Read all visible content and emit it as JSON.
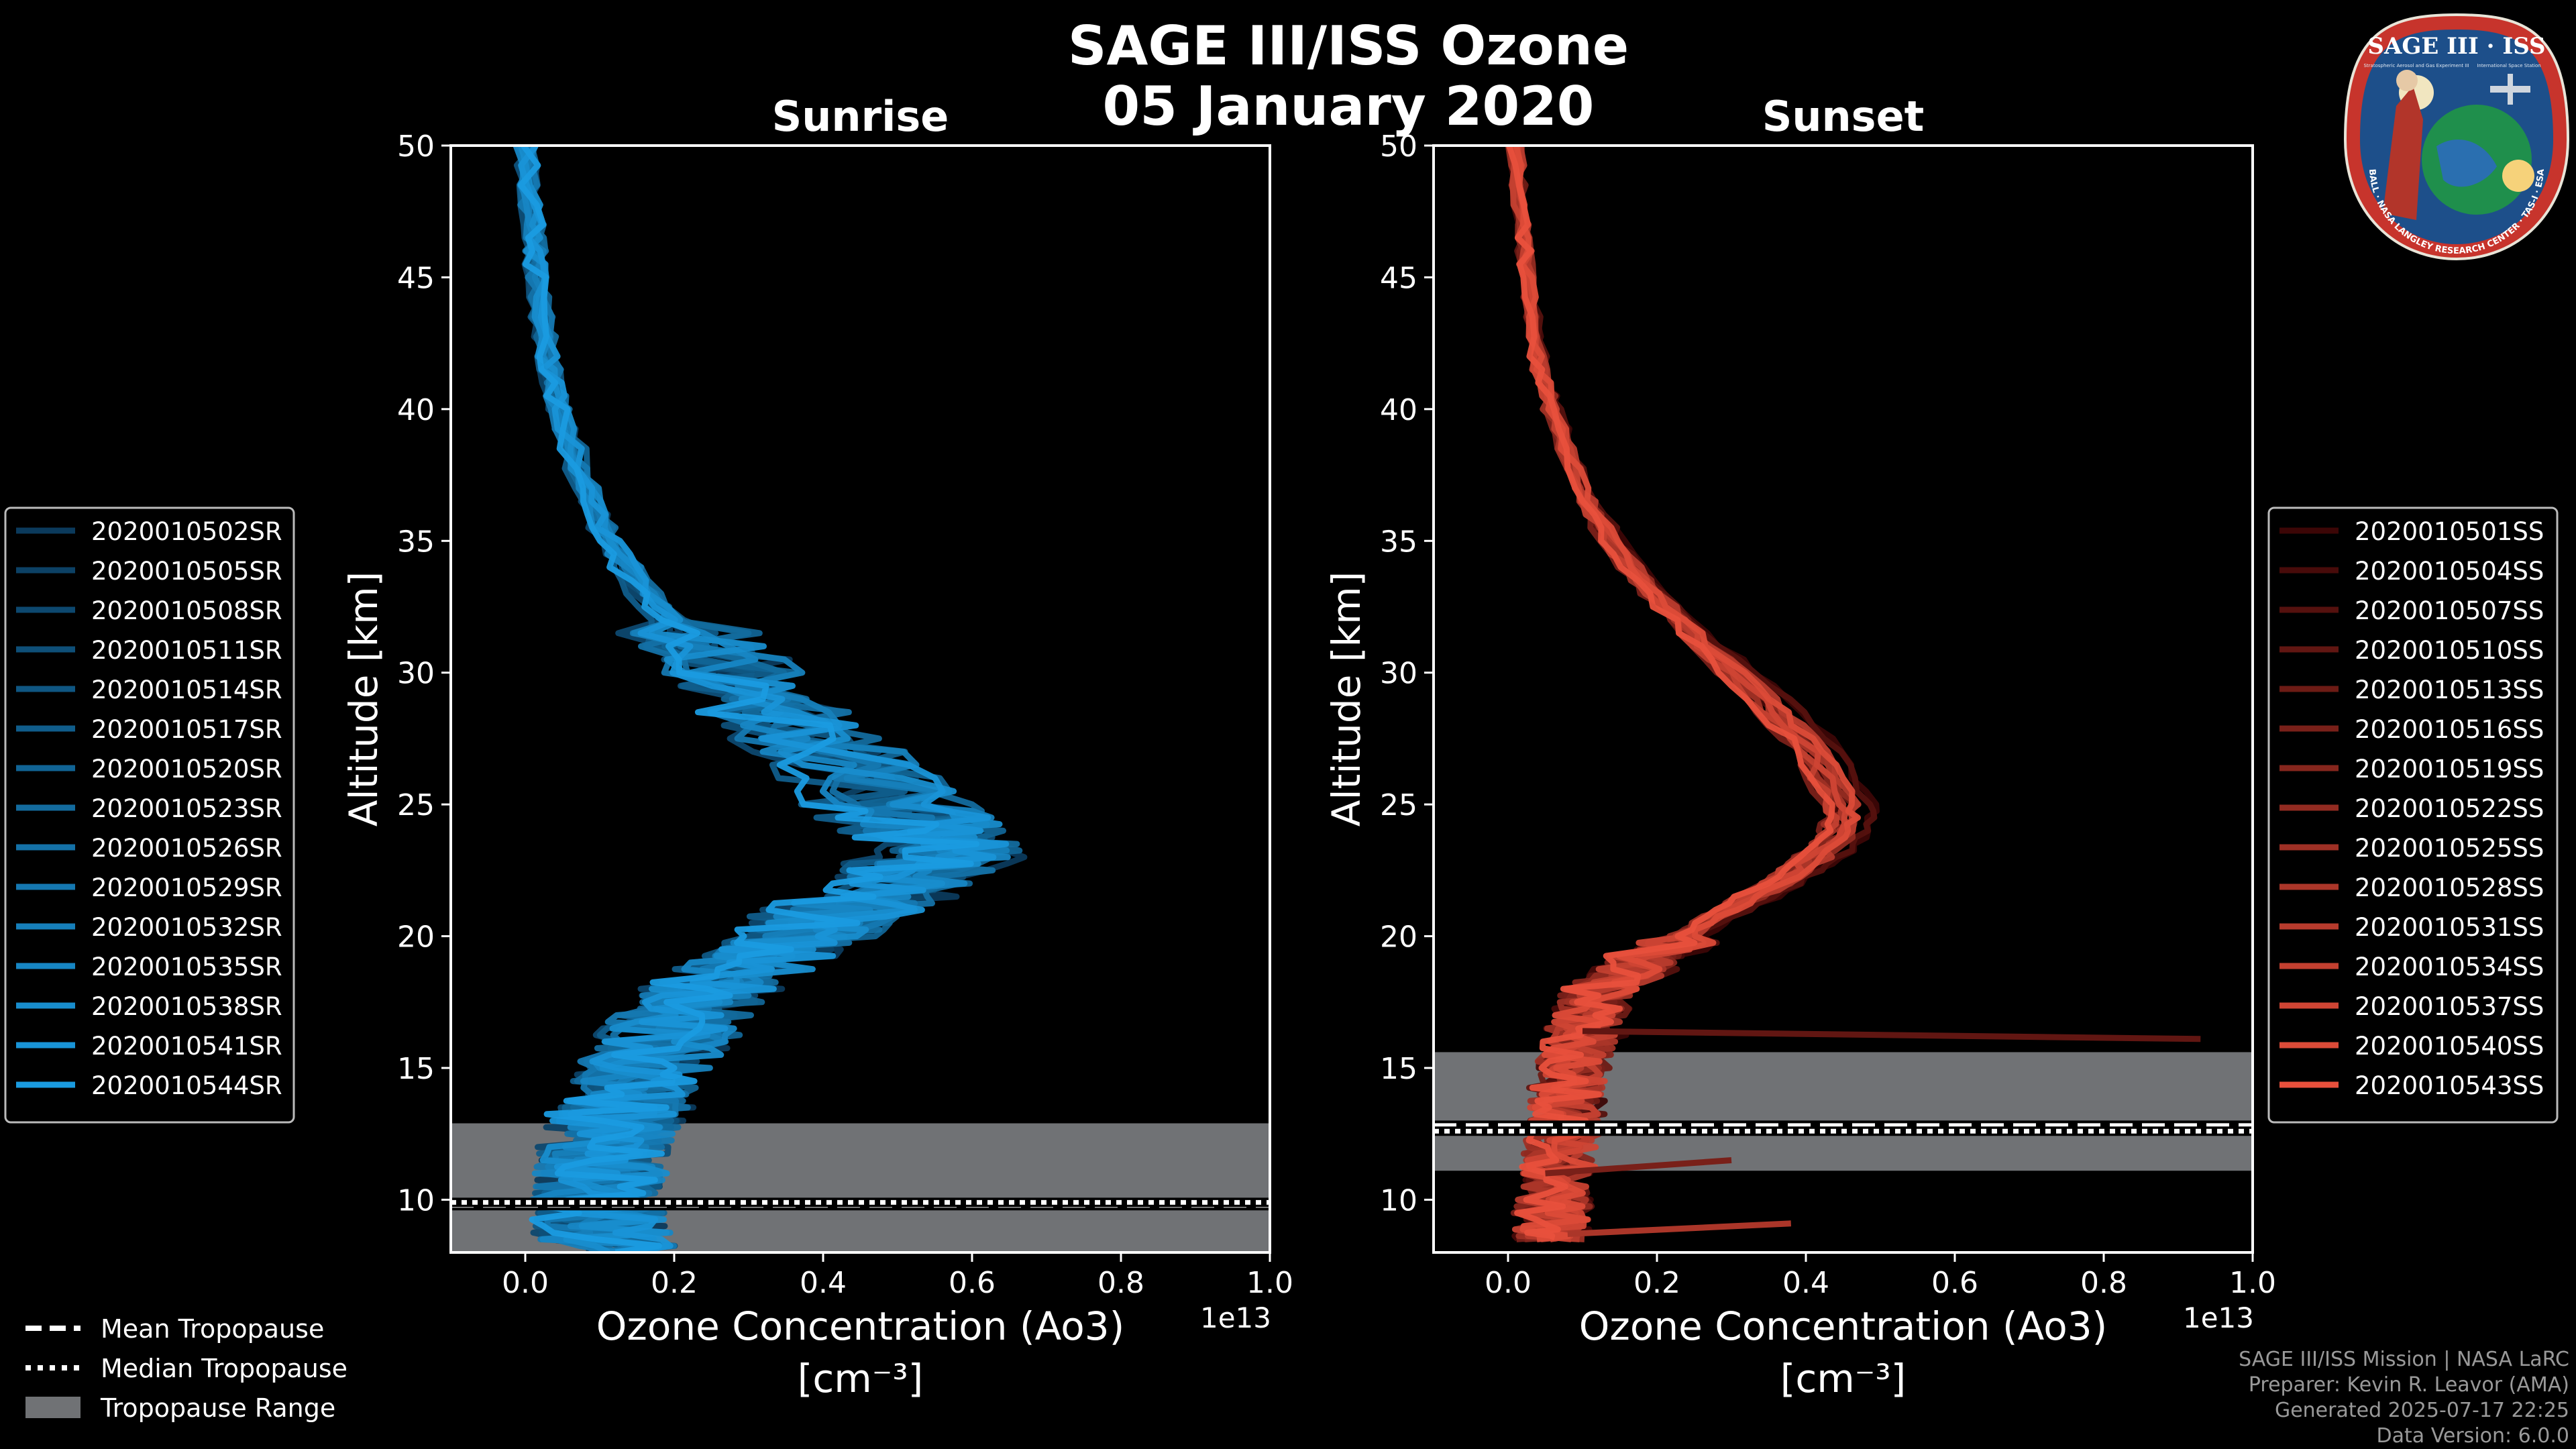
{
  "figure": {
    "title": "SAGE III/ISS Ozone",
    "date": "05 January 2020",
    "footer": [
      "SAGE III/ISS Mission | NASA LaRC",
      "Preparer: Kevin R. Leavor (AMA)",
      "Generated 2025-07-17 22:25",
      "Data Version: 6.0.0"
    ],
    "badge": {
      "title": "SAGE III · ISS",
      "ring_text": "BALL · NASA LANGLEY RESEARCH CENTER · TAS-I · ESA",
      "sub_left": "Stratospheric Aerosol and Gas Experiment III",
      "sub_right": "International Space Station"
    },
    "bottom_legend": [
      {
        "label": "Mean Tropopause",
        "style": "dashed"
      },
      {
        "label": "Median Tropopause",
        "style": "dotted"
      },
      {
        "label": "Tropopause Range",
        "style": "patch"
      }
    ]
  },
  "chart_data": [
    {
      "type": "line",
      "title": "Sunrise",
      "xlabel": "Ozone Concentration (Ao3)",
      "xunit": "[cm⁻³]",
      "ylabel": "Altitude [km]",
      "xlim": [
        -0.1,
        1.0
      ],
      "ylim": [
        8,
        50
      ],
      "xticks": [
        "0.0",
        "0.2",
        "0.4",
        "0.6",
        "0.8",
        "1.0"
      ],
      "yticks": [
        "10",
        "15",
        "20",
        "25",
        "30",
        "35",
        "40",
        "45",
        "50"
      ],
      "offset_text": "1e13",
      "color_dark": "#0b3a5c",
      "color_light": "#1a9be0",
      "tropopause": {
        "mean": 9.8,
        "median": 9.9,
        "range": [
          8.0,
          12.9
        ],
        "range_color": "#707275"
      },
      "legend": [
        "2020010502SR",
        "2020010505SR",
        "2020010508SR",
        "2020010511SR",
        "2020010514SR",
        "2020010517SR",
        "2020010520SR",
        "2020010523SR",
        "2020010526SR",
        "2020010529SR",
        "2020010532SR",
        "2020010535SR",
        "2020010538SR",
        "2020010541SR",
        "2020010544SR"
      ],
      "profile": {
        "altitudes": [
          50,
          47,
          45,
          42,
          40,
          37,
          35,
          33,
          31,
          29,
          27,
          25,
          24,
          23,
          22,
          21,
          20,
          19,
          18,
          17,
          16,
          15,
          14,
          13,
          12,
          11,
          10,
          9,
          8
        ],
        "values": [
          0.0,
          0.01,
          0.015,
          0.03,
          0.045,
          0.08,
          0.11,
          0.16,
          0.23,
          0.31,
          0.4,
          0.49,
          0.54,
          0.56,
          0.5,
          0.43,
          0.36,
          0.3,
          0.25,
          0.21,
          0.18,
          0.16,
          0.14,
          0.12,
          0.11,
          0.1,
          0.09,
          0.1,
          0.12
        ]
      },
      "series_count": 15
    },
    {
      "type": "line",
      "title": "Sunset",
      "xlabel": "Ozone Concentration (Ao3)",
      "xunit": "[cm⁻³]",
      "ylabel": "Altitude [km]",
      "xlim": [
        -0.1,
        1.0
      ],
      "ylim": [
        8,
        50
      ],
      "xticks": [
        "0.0",
        "0.2",
        "0.4",
        "0.6",
        "0.8",
        "1.0"
      ],
      "yticks": [
        "10",
        "15",
        "20",
        "25",
        "30",
        "35",
        "40",
        "45",
        "50"
      ],
      "offset_text": "1e13",
      "color_dark": "#3c0606",
      "color_light": "#e8503c",
      "tropopause": {
        "mean": 12.8,
        "median": 12.6,
        "range": [
          11.1,
          15.6
        ],
        "range_color": "#707275"
      },
      "legend": [
        "2020010501SS",
        "2020010504SS",
        "2020010507SS",
        "2020010510SS",
        "2020010513SS",
        "2020010516SS",
        "2020010519SS",
        "2020010522SS",
        "2020010525SS",
        "2020010528SS",
        "2020010531SS",
        "2020010534SS",
        "2020010537SS",
        "2020010540SS",
        "2020010543SS"
      ],
      "profile": {
        "altitudes": [
          50,
          47,
          45,
          42,
          40,
          37,
          35,
          33,
          31,
          29,
          27,
          25,
          24,
          23,
          22,
          21,
          20,
          19,
          18,
          17,
          16,
          15,
          14,
          13,
          12,
          11,
          10,
          9,
          8.5
        ],
        "values": [
          0.01,
          0.02,
          0.025,
          0.04,
          0.06,
          0.1,
          0.14,
          0.2,
          0.27,
          0.35,
          0.42,
          0.46,
          0.46,
          0.42,
          0.37,
          0.3,
          0.24,
          0.18,
          0.13,
          0.11,
          0.1,
          0.09,
          0.08,
          0.08,
          0.07,
          0.07,
          0.06,
          0.06,
          0.06
        ]
      },
      "outliers": [
        {
          "series": 3,
          "points": [
            [
              0.1,
              16.4
            ],
            [
              0.93,
              16.1
            ]
          ]
        },
        {
          "series": 9,
          "points": [
            [
              0.08,
              8.7
            ],
            [
              0.38,
              9.1
            ]
          ]
        },
        {
          "series": 5,
          "points": [
            [
              0.05,
              11.0
            ],
            [
              0.3,
              11.5
            ]
          ]
        }
      ],
      "series_count": 15
    }
  ]
}
